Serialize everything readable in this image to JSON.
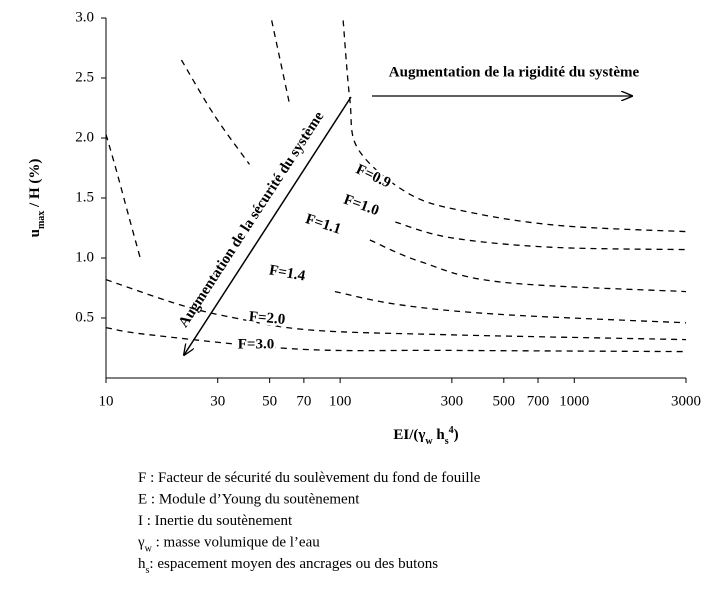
{
  "chart_data": {
    "type": "line",
    "y_label": [
      "u",
      "max",
      " / H  (%)"
    ],
    "x_label": [
      "EI/(γ",
      "w",
      " h",
      "s",
      "4",
      ")"
    ],
    "log_x": true,
    "xlim": [
      10,
      3000
    ],
    "xticks": [
      10,
      30,
      50,
      70,
      100,
      300,
      500,
      700,
      1000,
      3000
    ],
    "ylim": [
      0,
      3
    ],
    "yticks": [
      0.5,
      {
        "value": 1,
        "label": "1.0"
      },
      1.5,
      {
        "value": 2,
        "label": "2.0"
      },
      2.5,
      {
        "value": 3,
        "label": "3.0"
      }
    ],
    "color": "#000000",
    "series": [
      {
        "x": [
          10,
          11,
          12.5,
          14
        ],
        "values": [
          2.03,
          1.75,
          1.35,
          1.0
        ]
      },
      {
        "x": [
          21,
          29,
          41
        ],
        "values": [
          2.65,
          2.19,
          1.78
        ]
      },
      {
        "x": [
          51,
          61
        ],
        "values": [
          2.98,
          2.27
        ]
      },
      {
        "name": "F=0.9",
        "x": [
          103,
          110,
          120,
          199,
          360,
          871,
          3000
        ],
        "values": [
          2.98,
          2.32,
          1.9,
          1.53,
          1.38,
          1.27,
          1.22
        ]
      },
      {
        "name": "F=1.0",
        "x": [
          172,
          295,
          789,
          3000
        ],
        "values": [
          1.3,
          1.17,
          1.09,
          1.07
        ]
      },
      {
        "name": "F=1.1",
        "x": [
          134,
          220,
          483,
          3000
        ],
        "values": [
          1.15,
          0.97,
          0.8,
          0.72
        ]
      },
      {
        "name": "F=1.4",
        "x": [
          95,
          180,
          483,
          3000
        ],
        "values": [
          0.72,
          0.61,
          0.53,
          0.46
        ]
      },
      {
        "name": "F=2.0",
        "x": [
          10,
          20.7,
          35.6,
          74.5,
          295,
          3000
        ],
        "values": [
          0.82,
          0.61,
          0.5,
          0.4,
          0.36,
          0.32
        ]
      },
      {
        "name": "F=3.0",
        "x": [
          10,
          15.4,
          67.4,
          295,
          3000
        ],
        "values": [
          0.42,
          0.36,
          0.24,
          0.23,
          0.22
        ]
      }
    ],
    "annotations": [
      "Augmentation de la rigidité du système",
      "Augmentation de la sécurité du système"
    ],
    "notes": [
      [
        "F : Facteur de sécurité du soulèvement du fond de fouille"
      ],
      [
        "E : Module d’Young du soutènement"
      ],
      [
        "I : Inertie du soutènement"
      ],
      [
        "γ",
        "w",
        " : masse volumique de l’eau"
      ],
      [
        "h",
        "s",
        ": espacement moyen des ancrages ou des butons"
      ]
    ]
  }
}
